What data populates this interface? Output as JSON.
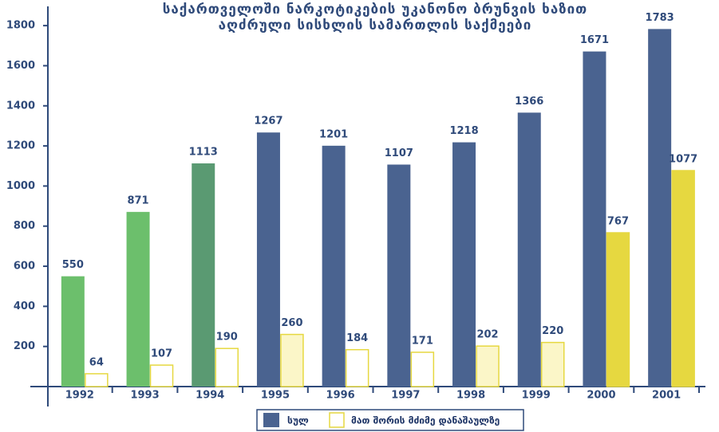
{
  "chart_data": {
    "type": "bar",
    "title_lines": [
      "საქართველოში ნარკოტიკების უკანონო ბრუნვის ხაზით",
      "აღძრული სისხლის სამართლის საქმეები"
    ],
    "categories": [
      "1992",
      "1993",
      "1994",
      "1995",
      "1996",
      "1997",
      "1998",
      "1999",
      "2000",
      "2001"
    ],
    "series": [
      {
        "name": "სულ",
        "color": "#4a6390",
        "colors": [
          "#6cbf6c",
          "#6cbf6c",
          "#5a9a72",
          "#4a6390",
          "#4a6390",
          "#4a6390",
          "#4a6390",
          "#4a6390",
          "#4a6390",
          "#4a6390"
        ],
        "values": [
          550,
          871,
          1113,
          1267,
          1201,
          1107,
          1218,
          1366,
          1671,
          1783
        ]
      },
      {
        "name": "მათ შორის მძიმე დანაშაულზე",
        "color": "#e6d840",
        "colors": [
          "#ffffff",
          "#ffffff",
          "#ffffff",
          "#fbf6c8",
          "#ffffff",
          "#ffffff",
          "#fbf6c8",
          "#fbf6c8",
          "#e6d840",
          "#e6d840"
        ],
        "values": [
          64,
          107,
          190,
          260,
          184,
          171,
          202,
          220,
          767,
          1077
        ]
      }
    ],
    "ylim": [
      0,
      1880
    ],
    "yticks": [
      200,
      400,
      600,
      800,
      1000,
      1200,
      1400,
      1600,
      1800
    ],
    "grid": false,
    "legend": "bottom"
  }
}
